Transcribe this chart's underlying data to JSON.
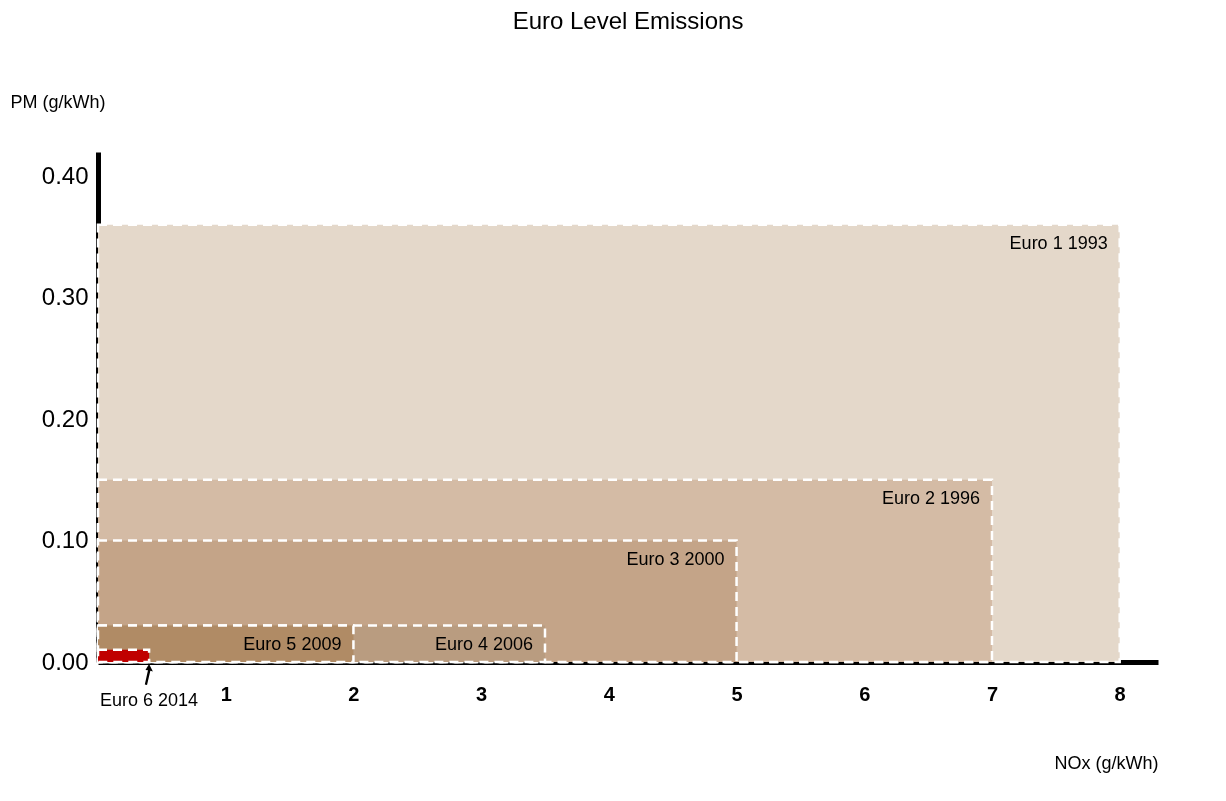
{
  "chart_data": {
    "type": "area",
    "title": "Euro Level Emissions",
    "xlabel": "NOx (g/kWh)",
    "ylabel": "PM (g/kWh)",
    "series": [
      {
        "name": "Euro 1 1993",
        "color": "#e4d8ca",
        "x": [
          0,
          8
        ],
        "values": [
          0.36,
          0.36
        ]
      },
      {
        "name": "Euro 2 1996",
        "color": "#d4bba5",
        "x": [
          0,
          7
        ],
        "values": [
          0.15,
          0.15
        ]
      },
      {
        "name": "Euro 3 2000",
        "color": "#c4a488",
        "x": [
          0,
          5
        ],
        "values": [
          0.1,
          0.1
        ]
      },
      {
        "name": "Euro 4 2006",
        "color": "#b99c80",
        "x": [
          0,
          3.5
        ],
        "values": [
          0.03,
          0.03
        ]
      },
      {
        "name": "Euro 5 2009",
        "color": "#b08b65",
        "x": [
          0,
          2
        ],
        "values": [
          0.03,
          0.03
        ]
      },
      {
        "name": "Euro 6 2014",
        "color": "#c00000",
        "x": [
          0,
          0.4
        ],
        "values": [
          0.01,
          0.01
        ]
      }
    ],
    "xlim": [
      0,
      8.3
    ],
    "xticks": [
      1,
      2,
      3,
      4,
      5,
      6,
      7,
      8
    ],
    "ylim": [
      0,
      0.42
    ],
    "yticks": [
      {
        "value": 0,
        "label": "0.00"
      },
      {
        "value": 0.1,
        "label": "0.10"
      },
      {
        "value": 0.2,
        "label": "0.20"
      },
      {
        "value": 0.3,
        "label": "0.30"
      },
      {
        "value": 0.4,
        "label": "0.40"
      }
    ],
    "grid": false,
    "line_style": "dashed"
  }
}
